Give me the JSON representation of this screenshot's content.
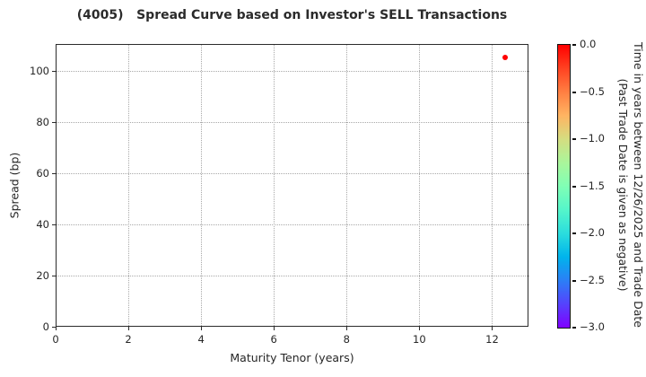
{
  "chart_data": {
    "type": "scatter",
    "title": "(4005)   Spread Curve based on Investor's SELL Transactions",
    "xlabel": "Maturity Tenor (years)",
    "ylabel": "Spread (bp)",
    "xlim": [
      0,
      13
    ],
    "ylim": [
      0,
      110.6
    ],
    "grid": true,
    "grid_style": "dotted",
    "legend": "none",
    "xticks": [
      0,
      2,
      4,
      6,
      8,
      10,
      12
    ],
    "xtick_labels": [
      "0",
      "2",
      "4",
      "6",
      "8",
      "10",
      "12"
    ],
    "yticks": [
      0,
      20,
      40,
      60,
      80,
      100
    ],
    "ytick_labels": [
      "0",
      "20",
      "40",
      "60",
      "80",
      "100"
    ],
    "points": [
      {
        "x": 12.35,
        "y": 105.3,
        "time_value": 0.0,
        "color": "#ff0000"
      }
    ],
    "colorbar": {
      "label_line1": "Time in years between 12/26/2025 and Trade Date",
      "label_line2": "(Past Trade Date is given as negative)",
      "colormap": "rainbow",
      "range": [
        0.0,
        -3.0
      ],
      "tick_values": [
        0,
        -0.5,
        -1,
        -1.5,
        -2,
        -2.5,
        -3
      ],
      "tick_labels": [
        "0.0",
        "−0.5",
        "−1.0",
        "−1.5",
        "−2.0",
        "−2.5",
        "−3.0"
      ],
      "gradient_stops": [
        {
          "pos": 0,
          "color": "#ff0000"
        },
        {
          "pos": 8.3,
          "color": "#ff4221"
        },
        {
          "pos": 16.7,
          "color": "#ff7f42"
        },
        {
          "pos": 25,
          "color": "#ffb462"
        },
        {
          "pos": 33.3,
          "color": "#d5dd80"
        },
        {
          "pos": 41.7,
          "color": "#aaf69b"
        },
        {
          "pos": 50,
          "color": "#80ffb5"
        },
        {
          "pos": 58.3,
          "color": "#55f6ca"
        },
        {
          "pos": 66.7,
          "color": "#2bdddd"
        },
        {
          "pos": 75,
          "color": "#00b4ec"
        },
        {
          "pos": 83.3,
          "color": "#2b7ff6"
        },
        {
          "pos": 91.7,
          "color": "#5542fd"
        },
        {
          "pos": 100,
          "color": "#8000ff"
        }
      ]
    }
  }
}
